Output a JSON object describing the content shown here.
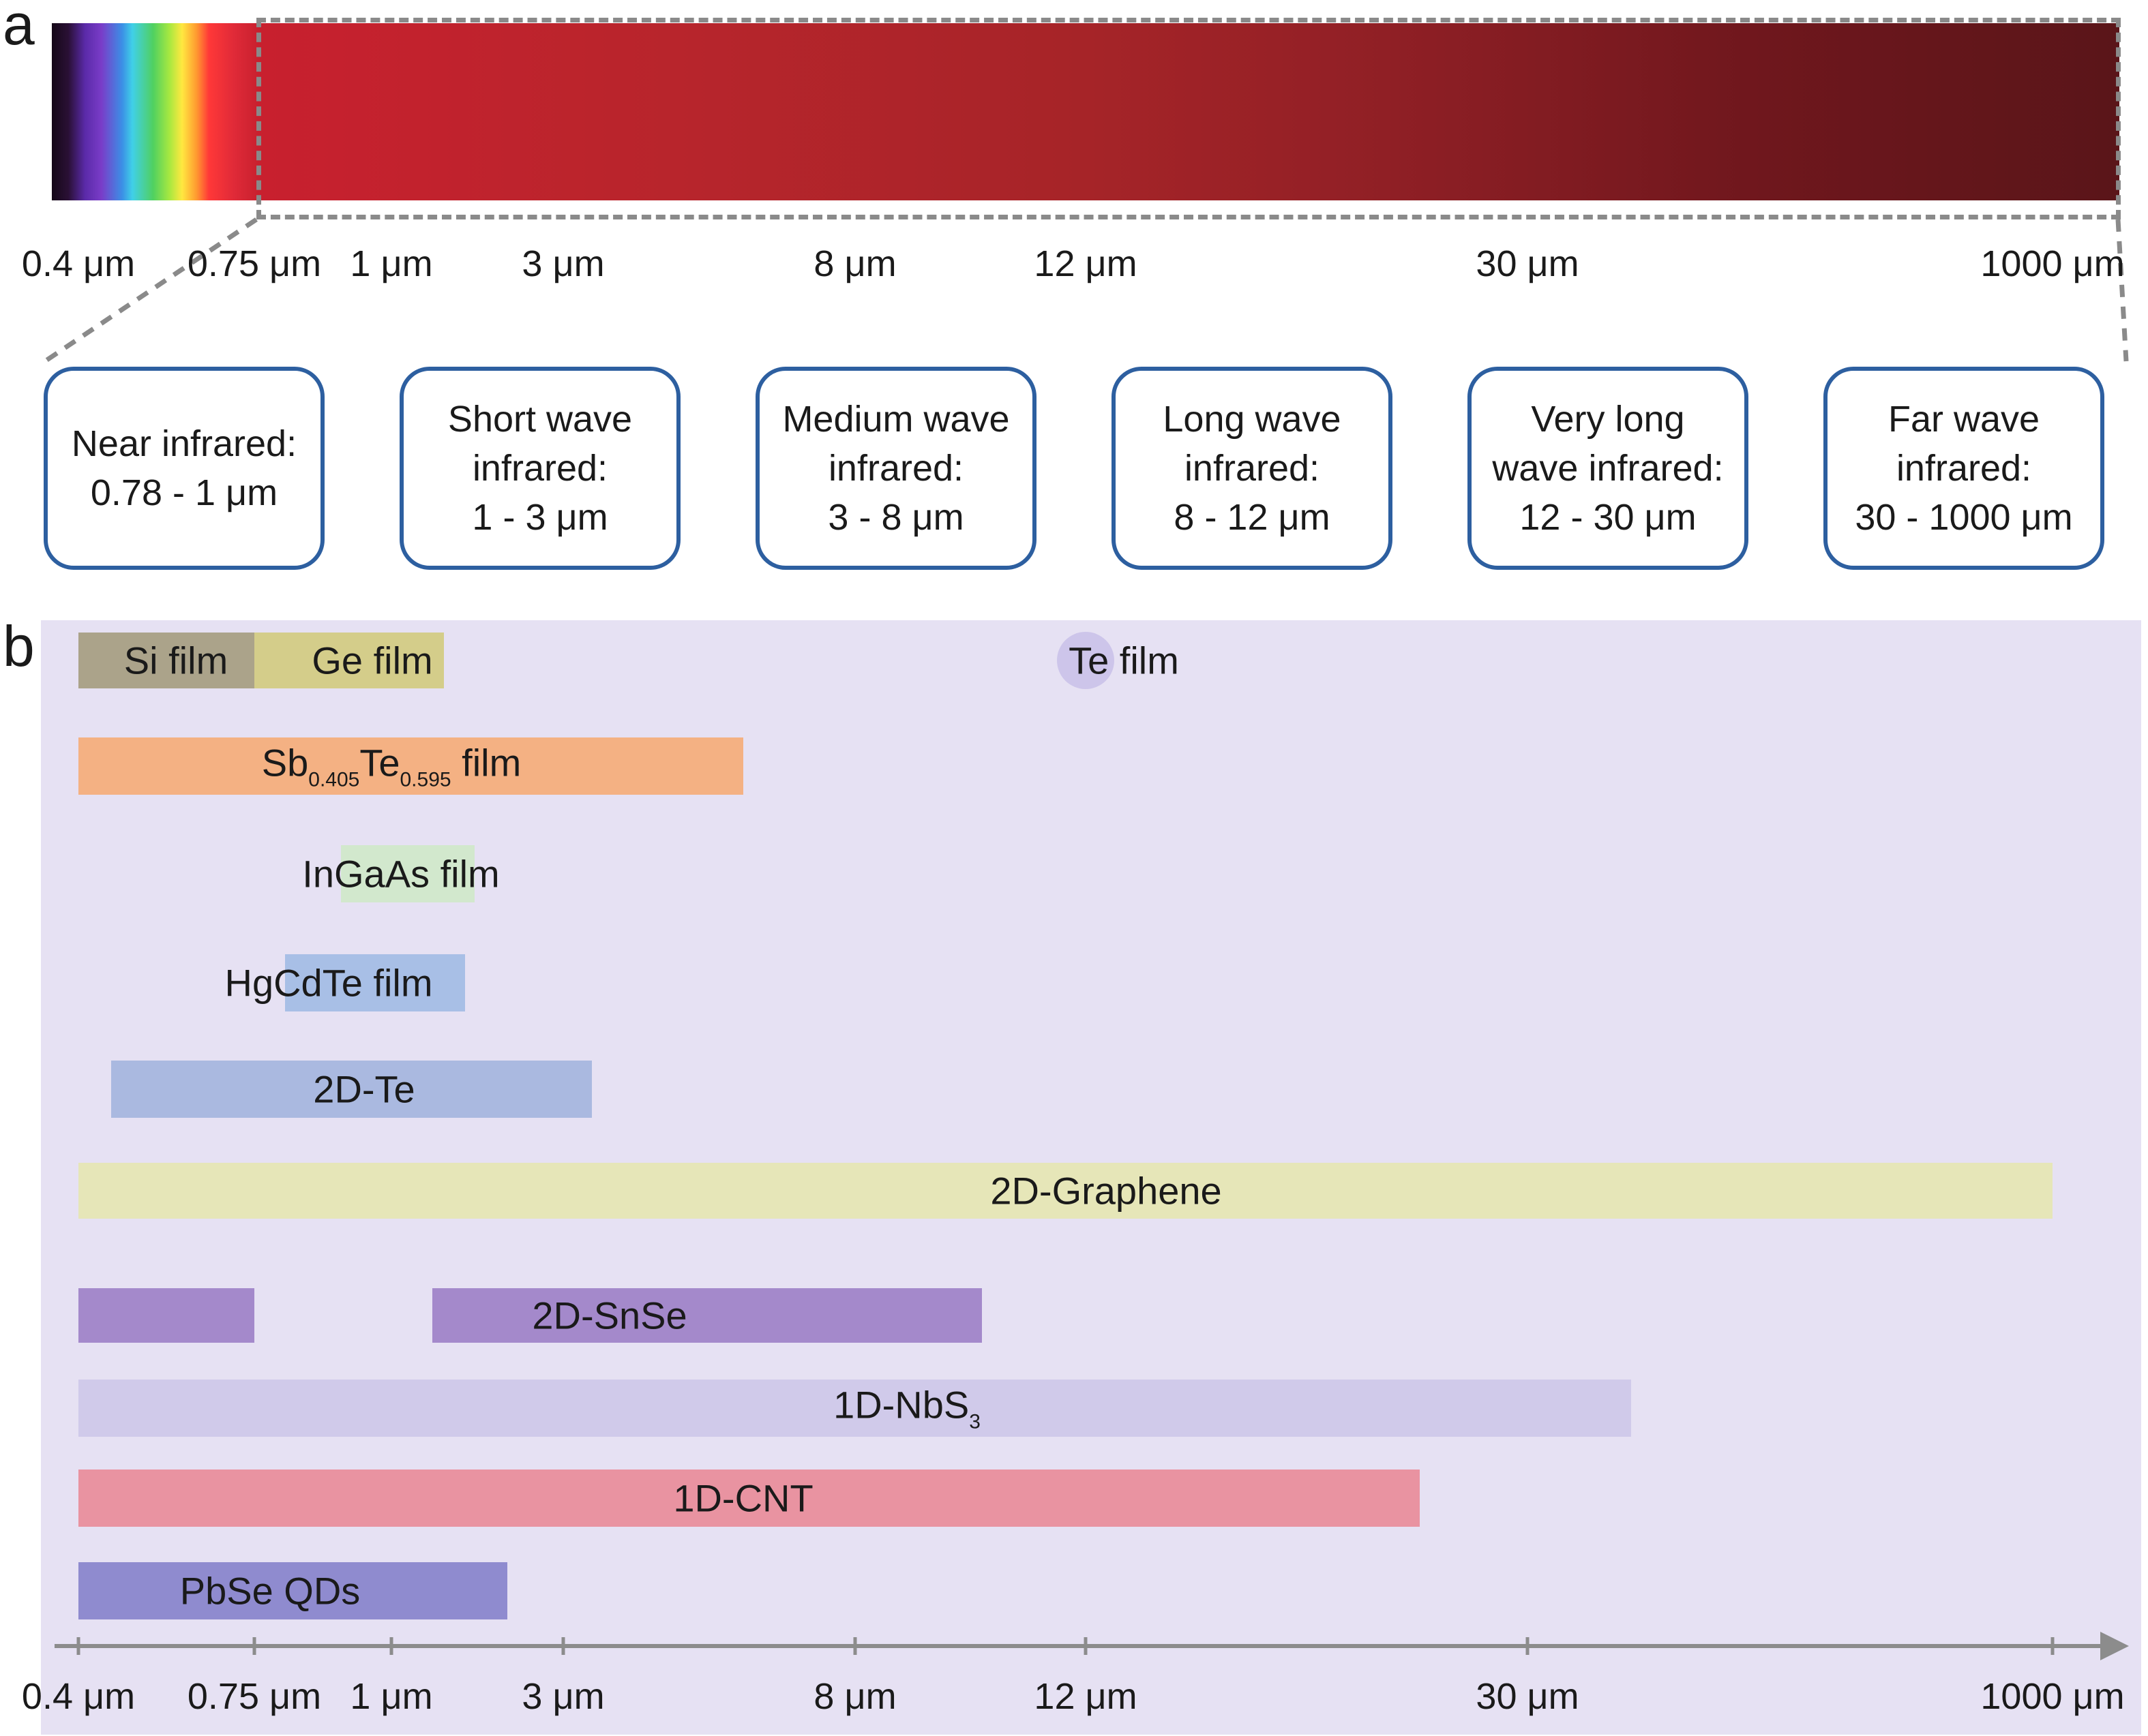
{
  "panel_a": {
    "letter": "a",
    "tick_labels": [
      "0.4 μm",
      "0.75 μm",
      "1 μm",
      "3 μm",
      "8 μm",
      "12 μm",
      "30 μm",
      "1000 μm"
    ],
    "bands": [
      {
        "name": "Near infrared:",
        "name2": "",
        "range": "0.78 - 1 μm"
      },
      {
        "name": "Short wave",
        "name2": "infrared:",
        "range": "1 - 3 μm"
      },
      {
        "name": "Medium wave",
        "name2": "infrared:",
        "range": "3 - 8 μm"
      },
      {
        "name": "Long wave",
        "name2": "infrared:",
        "range": "8 - 12 μm"
      },
      {
        "name": "Very long",
        "name2": "wave infrared:",
        "range": "12 - 30 μm"
      },
      {
        "name": "Far wave",
        "name2": "infrared:",
        "range": "30 - 1000 μm"
      }
    ],
    "colors": {
      "box_border": "#2d5fa0",
      "dash": "#8a8a8a"
    }
  },
  "panel_b": {
    "letter": "b",
    "tick_labels": [
      "0.4 μm",
      "0.75 μm",
      "1 μm",
      "3 μm",
      "8 μm",
      "12 μm",
      "30 μm",
      "1000 μm"
    ],
    "colors": {
      "background": "#e6e1f3",
      "axis": "#8c8c8c"
    }
  },
  "chart_data": {
    "type": "bar",
    "orientation": "horizontal",
    "x_tick_labels": [
      "0.4 μm",
      "0.75 μm",
      "1 μm",
      "3 μm",
      "8 μm",
      "12 μm",
      "30 μm",
      "1000 μm"
    ],
    "rows": [
      {
        "row": 0,
        "label": "Si film",
        "start": 0.4,
        "end": 0.75,
        "color": "#aba38a"
      },
      {
        "row": 0,
        "label": "Ge film",
        "start": 0.75,
        "end": 1.4,
        "color": "#d4cd8a"
      },
      {
        "row": 0,
        "label": "Te film",
        "start": 12,
        "end": 12,
        "color": "#cdc5ea",
        "marker": "point"
      },
      {
        "row": 1,
        "label_parts": [
          "Sb",
          "0.405",
          "Te",
          "0.595",
          " film"
        ],
        "start": 0.4,
        "end": 5.5,
        "color": "#f4b183"
      },
      {
        "row": 2,
        "label": "InGaAs film",
        "start": 0.9,
        "end": 1.7,
        "color": "#d2e8cd"
      },
      {
        "row": 3,
        "label": "HgCdTe film",
        "start": 0.8,
        "end": 1.6,
        "color": "#a8bfe6"
      },
      {
        "row": 4,
        "label": "2D-Te",
        "start": 0.45,
        "end": 3.3,
        "color": "#aab9e0"
      },
      {
        "row": 5,
        "label": "2D-Graphene",
        "start": 0.4,
        "end": 1000,
        "color": "#e6e6b8"
      },
      {
        "row": 6,
        "label": "",
        "start": 0.4,
        "end": 0.75,
        "color": "#a489cb"
      },
      {
        "row": 6,
        "label": "2D-SnSe",
        "start": 1.3,
        "end": 10.0,
        "color": "#a489cb"
      },
      {
        "row": 7,
        "label_parts": [
          "1D-NbS",
          "3"
        ],
        "start": 0.4,
        "end": 60,
        "color": "#d0caea"
      },
      {
        "row": 8,
        "label": "1D-CNT",
        "start": 0.4,
        "end": 24,
        "color": "#e993a1"
      },
      {
        "row": 9,
        "label": "PbSe QDs",
        "start": 0.4,
        "end": 2.1,
        "color": "#8f8bcf"
      }
    ]
  }
}
